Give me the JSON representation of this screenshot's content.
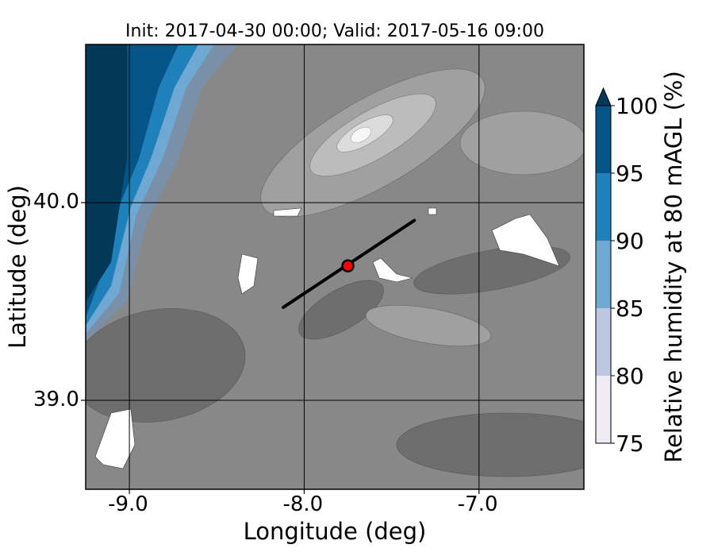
{
  "chart_data": {
    "type": "heatmap",
    "title": "Init: 2017-04-30 00:00; Valid: 2017-05-16 09:00",
    "xlabel": "Longitude (deg)",
    "ylabel": "Latitude (deg)",
    "xlim": [
      -9.25,
      -6.4
    ],
    "ylim": [
      38.55,
      40.8
    ],
    "x_ticks": [
      {
        "value": -9.0,
        "label": "-9.0"
      },
      {
        "value": -8.0,
        "label": "-8.0"
      },
      {
        "value": -7.0,
        "label": "-7.0"
      }
    ],
    "y_ticks": [
      {
        "value": 40.0,
        "label": "40.0"
      },
      {
        "value": 39.0,
        "label": "39.0"
      }
    ],
    "colorbar": {
      "label": "Relative humidity at 80 mAGL (%)",
      "extend": "max",
      "levels": [
        75,
        80,
        85,
        90,
        95,
        100
      ],
      "tick_labels": [
        "75",
        "80",
        "85",
        "90",
        "95",
        "100"
      ],
      "colors": [
        "#efebf5",
        "#bcc7e1",
        "#6fa8d2",
        "#1f80ba",
        "#045488",
        "#023858"
      ]
    },
    "terrain_shading": {
      "colors": [
        "#6e6e6e",
        "#888888",
        "#a0a0a0",
        "#bcbcbc",
        "#dcdcdc",
        "#f6f6f6"
      ]
    },
    "cross_section_line": {
      "start": [
        -8.12,
        39.47
      ],
      "end": [
        -7.37,
        39.91
      ],
      "color": "#000000"
    },
    "marker": {
      "lon": -7.75,
      "lat": 39.68,
      "color": "#ff0000",
      "edge_color": "#000000"
    }
  }
}
